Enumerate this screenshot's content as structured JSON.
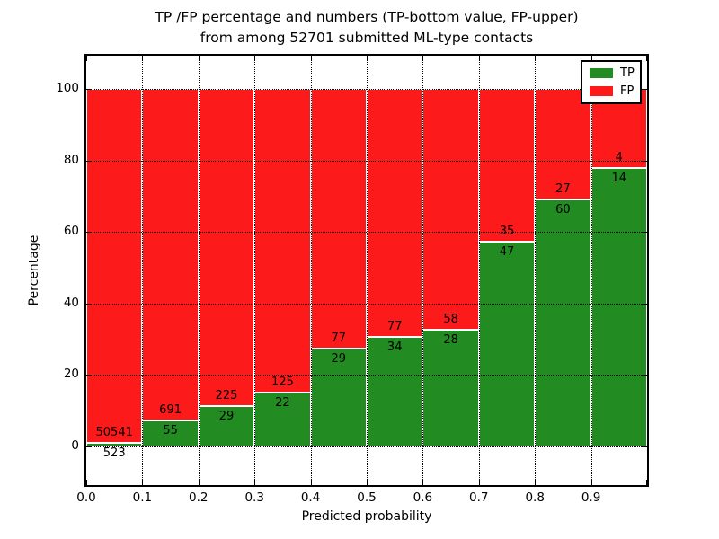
{
  "title": {
    "line1": "TP /FP percentage and numbers (TP-bottom value, FP-upper)",
    "line2": "from among 52701 submitted ML-type contacts"
  },
  "axes": {
    "xlabel": "Predicted probability",
    "ylabel": "Percentage",
    "xtick_labels": [
      "0.0",
      "0.1",
      "0.2",
      "0.3",
      "0.4",
      "0.5",
      "0.6",
      "0.7",
      "0.8",
      "0.9"
    ],
    "ytick_labels": [
      "0",
      "20",
      "40",
      "60",
      "80",
      "100"
    ],
    "ytick_values": [
      0,
      20,
      40,
      60,
      80,
      100
    ]
  },
  "legend": {
    "position": "upper right",
    "entries": [
      {
        "label": "TP",
        "color": "#228b22"
      },
      {
        "label": "FP",
        "color": "#fc1a1a"
      }
    ]
  },
  "chart_data": {
    "type": "bar",
    "stacked": true,
    "title": "TP /FP percentage and numbers (TP-bottom value, FP-upper) from among 52701 submitted ML-type contacts",
    "xlabel": "Predicted probability",
    "ylabel": "Percentage",
    "total_contacts": 52701,
    "bin_starts": [
      0.0,
      0.1,
      0.2,
      0.3,
      0.4,
      0.5,
      0.6,
      0.7,
      0.8,
      0.9
    ],
    "bin_width": 0.1,
    "ylim_shown": [
      -10.9,
      109.3
    ],
    "grid": true,
    "series": [
      {
        "name": "TP",
        "color": "#228b22",
        "counts": [
          523,
          55,
          29,
          22,
          29,
          34,
          28,
          47,
          60,
          14
        ],
        "pct": [
          1.02,
          7.37,
          11.42,
          14.97,
          27.36,
          30.63,
          32.56,
          57.32,
          68.97,
          77.78
        ]
      },
      {
        "name": "FP",
        "color": "#fc1a1a",
        "counts": [
          50541,
          691,
          225,
          125,
          77,
          77,
          58,
          35,
          27,
          4
        ],
        "pct": [
          98.98,
          92.63,
          88.58,
          85.03,
          72.64,
          69.37,
          67.44,
          42.68,
          31.03,
          22.22
        ]
      }
    ]
  }
}
